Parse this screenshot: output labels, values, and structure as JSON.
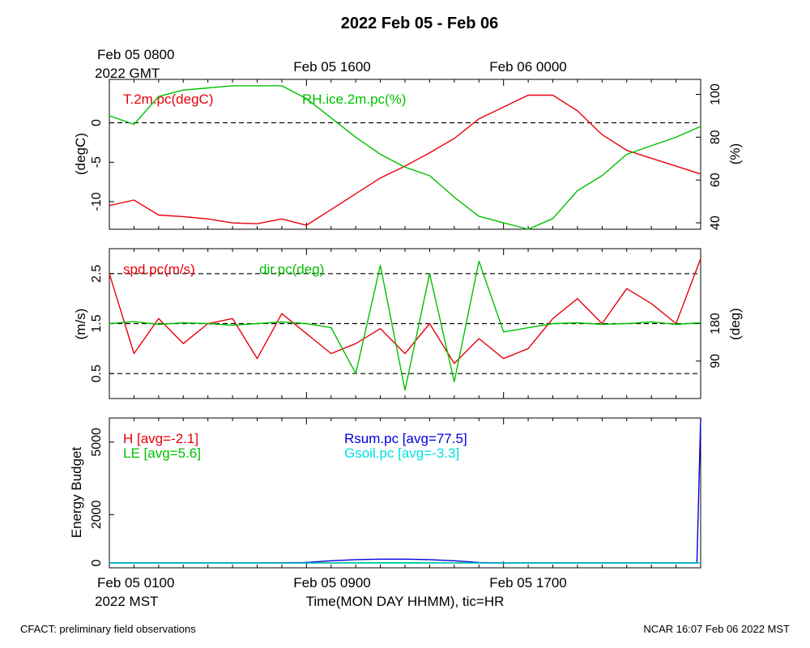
{
  "title": "2022 Feb 05 - Feb 06",
  "footer": {
    "left": "CFACT: preliminary field observations",
    "right": "NCAR 16:07 Feb 06 2022 MST"
  },
  "time_axis": {
    "top_labels": [
      {
        "text": "Feb 05 0800",
        "hour": 0
      },
      {
        "text": "Feb 05 1600",
        "hour": 8
      },
      {
        "text": "Feb 06 0000",
        "hour": 16
      }
    ],
    "top_year": "2022 GMT",
    "bottom_labels": [
      {
        "text": "Feb 05 0100",
        "hour": 0
      },
      {
        "text": "Feb 05 0900",
        "hour": 8
      },
      {
        "text": "Feb 05 1700",
        "hour": 16
      }
    ],
    "bottom_year": "2022 MST",
    "xlabel": "Time(MON DAY HHMM), tic=HR",
    "hours_span": 24
  },
  "chart_data": [
    {
      "type": "line",
      "panel": "temperature-humidity",
      "ylabel": "(degC)",
      "y2label": "(%)",
      "ylim": [
        -13.5,
        5.5
      ],
      "y2lim": [
        37,
        107
      ],
      "yticks": [
        0,
        -5,
        -10
      ],
      "y2ticks": [
        100,
        80,
        60,
        40
      ],
      "reference_lines": [
        0
      ],
      "x_hours": [
        0,
        1,
        2,
        3,
        4,
        5,
        6,
        7,
        8,
        9,
        10,
        11,
        12,
        13,
        14,
        15,
        16,
        17,
        18,
        19,
        20,
        21,
        22,
        23,
        24
      ],
      "series": [
        {
          "name": "T.2m.pc(degC)",
          "axis": "left",
          "color": "#e8000b",
          "values": [
            -10.5,
            -9.8,
            -11.7,
            -11.9,
            -12.2,
            -12.7,
            -12.8,
            -12.2,
            -13.0,
            -11.0,
            -9.0,
            -7.0,
            -5.5,
            -3.8,
            -2.0,
            0.5,
            2.0,
            3.5,
            3.5,
            1.5,
            -1.5,
            -3.5,
            -4.5,
            -5.5,
            -6.5
          ]
        },
        {
          "name": "RH.ice.2m.pc(%)",
          "axis": "right",
          "color": "#00c000",
          "values": [
            90,
            86,
            99,
            102,
            103,
            104,
            104,
            104,
            98,
            89,
            80,
            72,
            66,
            62,
            52,
            43,
            40,
            37,
            42,
            55,
            62,
            72,
            76,
            80,
            85
          ]
        }
      ]
    },
    {
      "type": "line",
      "panel": "wind",
      "ylabel": "(m/s)",
      "y2label": "(deg)",
      "ylim": [
        0,
        3
      ],
      "y2lim": [
        0,
        360
      ],
      "yticks": [
        2.5,
        1.5,
        0.5
      ],
      "y2ticks": [
        180,
        90
      ],
      "reference_lines": [
        2.5,
        1.5,
        0.5
      ],
      "x_hours": [
        0,
        1,
        2,
        3,
        4,
        5,
        6,
        7,
        8,
        9,
        10,
        11,
        12,
        13,
        14,
        15,
        16,
        17,
        18,
        19,
        20,
        21,
        22,
        23,
        24
      ],
      "series": [
        {
          "name": "spd.pc(m/s)",
          "axis": "left",
          "color": "#e8000b",
          "values": [
            2.5,
            0.9,
            1.6,
            1.1,
            1.5,
            1.6,
            0.8,
            1.7,
            1.3,
            0.9,
            1.1,
            1.4,
            0.9,
            1.5,
            0.7,
            1.2,
            0.8,
            1.0,
            1.6,
            2.0,
            1.5,
            2.2,
            1.9,
            1.5,
            2.8
          ]
        },
        {
          "name": "dir.pc(deg)",
          "axis": "right",
          "color": "#00c000",
          "values": [
            180,
            185,
            178,
            182,
            180,
            176,
            180,
            184,
            180,
            170,
            60,
            320,
            20,
            300,
            40,
            330,
            160,
            170,
            180,
            182,
            178,
            180,
            184,
            178,
            182
          ]
        }
      ]
    },
    {
      "type": "line",
      "panel": "energy-budget",
      "ylabel": "Energy Budget",
      "ylim": [
        -200,
        6000
      ],
      "yticks": [
        0,
        2000,
        5000
      ],
      "reference_lines": [
        0
      ],
      "x_hours": [
        0,
        2,
        4,
        6,
        8,
        9,
        10,
        11,
        12,
        13,
        14,
        15,
        16,
        18,
        20,
        22,
        23.5,
        23.85,
        24
      ],
      "series": [
        {
          "name": "H",
          "avg_label": "H [avg=-2.1]",
          "color": "#e8000b",
          "values": [
            -5,
            -5,
            -5,
            -5,
            -4,
            -2,
            -1,
            0,
            0,
            -1,
            -2,
            -3,
            -4,
            -5,
            -5,
            -5,
            -5,
            -5,
            -5
          ]
        },
        {
          "name": "LE",
          "avg_label": "LE [avg=5.6]",
          "color": "#00c000",
          "values": [
            3,
            3,
            4,
            5,
            6,
            8,
            9,
            10,
            10,
            9,
            8,
            6,
            5,
            4,
            4,
            3,
            3,
            3,
            3
          ]
        },
        {
          "name": "Rsum.pc",
          "avg_label": "Rsum.pc [avg=77.5]",
          "color": "#0000e0",
          "values": [
            0,
            0,
            0,
            0,
            20,
            90,
            140,
            160,
            160,
            140,
            90,
            20,
            0,
            0,
            0,
            0,
            0,
            0,
            6000
          ]
        },
        {
          "name": "Gsoil.pc",
          "avg_label": "Gsoil.pc [avg=-3.3]",
          "color": "#00e0e0",
          "values": [
            -3,
            -3,
            -3,
            -3,
            -3,
            -3,
            -4,
            -4,
            -4,
            -4,
            -3,
            -3,
            -3,
            -3,
            -3,
            -3,
            -3,
            -3,
            -3
          ]
        }
      ]
    }
  ]
}
